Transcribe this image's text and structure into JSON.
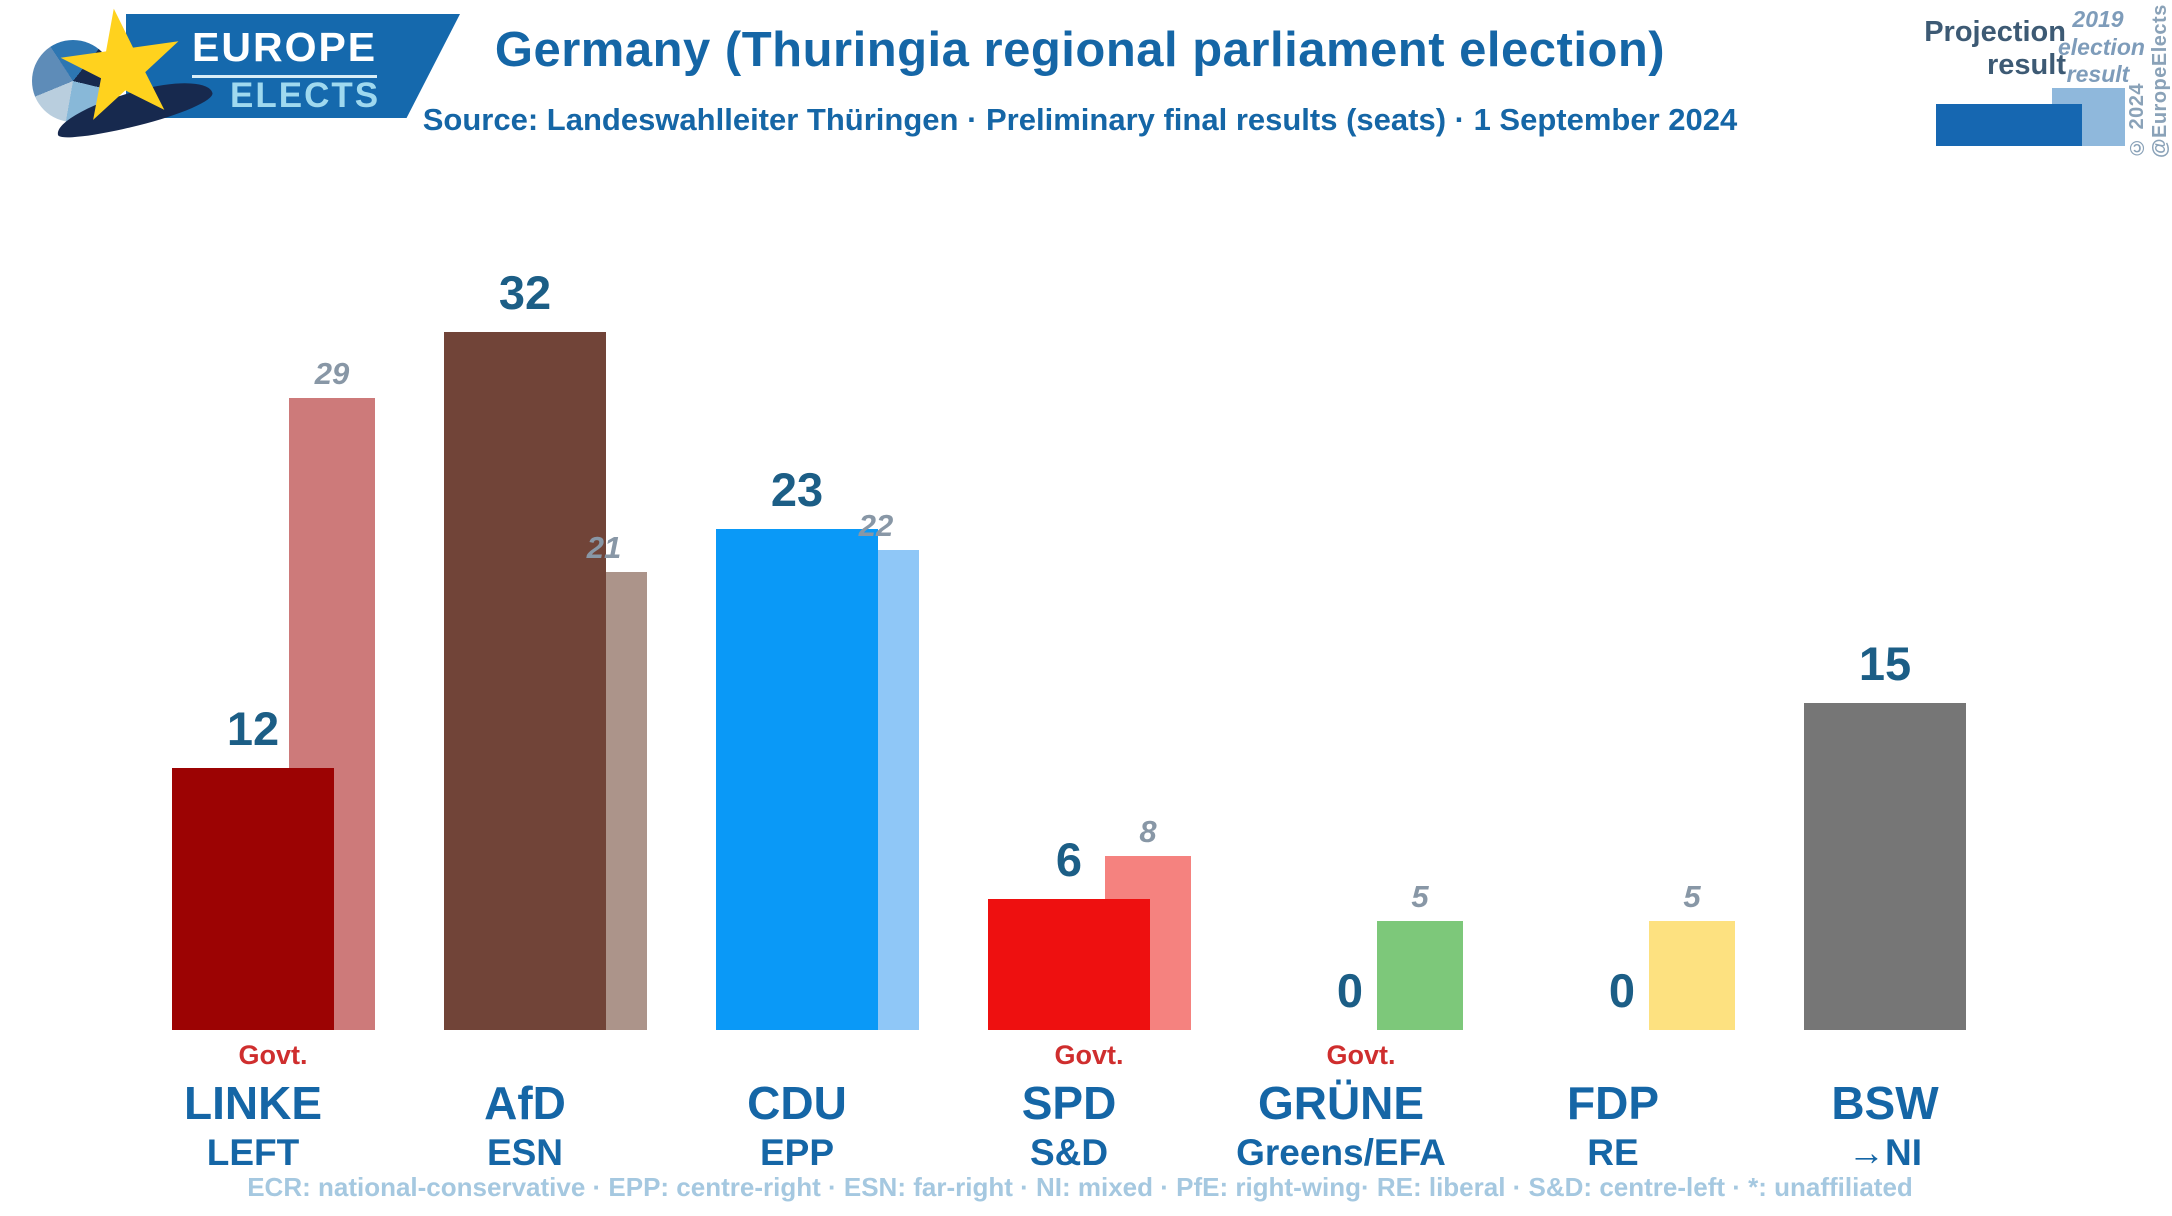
{
  "header": {
    "logo": {
      "line1": "EUROPE",
      "line2": "ELECTS",
      "banner_color": "#1569ad",
      "star_color": "#ffd21e"
    },
    "title": "Germany (Thuringia regional parliament election)",
    "subtitle": "Source: Landeswahlleiter Thüringen · Preliminary final results (seats) · 1 September 2024",
    "legend": {
      "projection_label": "Projection result",
      "previous_label": "2019 election result",
      "projection_color": "#1667b1",
      "previous_color": "#8fb8dc"
    },
    "copyright": "© 2024 @EuropeElects"
  },
  "chart_data": {
    "type": "bar",
    "title": "Germany (Thuringia regional parliament election)",
    "source": "Landeswahlleiter Thüringen · Preliminary final results (seats) · 1 September 2024",
    "unit": "seats",
    "categories": [
      "LINKE",
      "AfD",
      "CDU",
      "SPD",
      "GRÜNE",
      "FDP",
      "BSW"
    ],
    "category_groups": [
      "LEFT",
      "ESN",
      "EPP",
      "S&D",
      "Greens/EFA",
      "RE",
      "→NI"
    ],
    "series": [
      {
        "name": "Projection result",
        "values": [
          12,
          32,
          23,
          6,
          0,
          0,
          15
        ]
      },
      {
        "name": "2019 election result",
        "values": [
          29,
          21,
          22,
          8,
          5,
          5,
          null
        ]
      }
    ],
    "government_parties": [
      "LINKE",
      "SPD",
      "GRÜNE"
    ],
    "ylim": [
      0,
      34
    ],
    "grid": false,
    "legend_position": "top-right"
  },
  "parties": [
    {
      "name": "LINKE",
      "group": "LEFT",
      "projection": 12,
      "previous": 29,
      "govt": true,
      "color": "#9c0303",
      "previous_color": "#cd7a7a"
    },
    {
      "name": "AfD",
      "group": "ESN",
      "projection": 32,
      "previous": 21,
      "govt": false,
      "color": "#714438",
      "previous_color": "#ac948a"
    },
    {
      "name": "CDU",
      "group": "EPP",
      "projection": 23,
      "previous": 22,
      "govt": false,
      "color": "#0a99f7",
      "previous_color": "#8fc7f7"
    },
    {
      "name": "SPD",
      "group": "S&D",
      "projection": 6,
      "previous": 8,
      "govt": true,
      "color": "#ee1010",
      "previous_color": "#f5827f"
    },
    {
      "name": "GRÜNE",
      "group": "Greens/EFA",
      "projection": 0,
      "previous": 5,
      "govt": true,
      "color": null,
      "previous_color": "#7dc87a"
    },
    {
      "name": "FDP",
      "group": "RE",
      "projection": 0,
      "previous": 5,
      "govt": false,
      "color": null,
      "previous_color": "#fde180"
    },
    {
      "name": "BSW",
      "group": "→NI",
      "projection": 15,
      "previous": null,
      "govt": false,
      "color": "#767676",
      "previous_color": null
    }
  ],
  "labels": {
    "govt": "Govt."
  },
  "footer": {
    "legend_line": "ECR: national-conservative · EPP: centre-right · ESN: far-right · NI: mixed · PfE: right-wing· RE: liberal · S&D: centre-left · *: unaffiliated"
  }
}
